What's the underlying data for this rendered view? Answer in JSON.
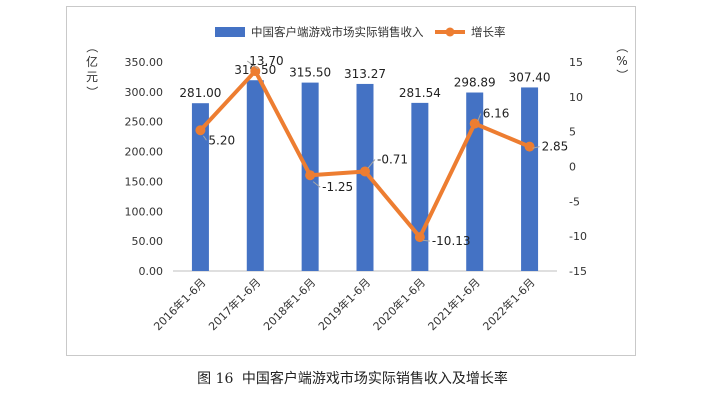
{
  "chart_data": {
    "type": "bar",
    "categories": [
      "2016年1-6月",
      "2017年1-6月",
      "2018年1-6月",
      "2019年1-6月",
      "2020年1-6月",
      "2021年1-6月",
      "2022年1-6月"
    ],
    "series": [
      {
        "name": "中国客户端游戏市场实际销售收入",
        "type": "bar",
        "axis": "left",
        "values": [
          281.0,
          319.5,
          315.5,
          313.27,
          281.54,
          298.89,
          307.4
        ],
        "labels": [
          "281.00",
          "319.50",
          "315.50",
          "313.27",
          "281.54",
          "298.89",
          "307.40"
        ],
        "color": "#4472c4"
      },
      {
        "name": "增长率",
        "type": "line",
        "axis": "right",
        "values": [
          5.2,
          13.7,
          -1.25,
          -0.71,
          -10.13,
          6.16,
          2.85
        ],
        "labels": [
          "5.20",
          "13.70",
          "-1.25",
          "-0.71",
          "-10.13",
          "6.16",
          "2.85"
        ],
        "color": "#ed7d31"
      }
    ],
    "left_axis": {
      "label": "（亿元）",
      "ylim": [
        0,
        350
      ],
      "ticks": [
        "0.00",
        "50.00",
        "100.00",
        "150.00",
        "200.00",
        "250.00",
        "300.00",
        "350.00"
      ]
    },
    "right_axis": {
      "label": "（%）",
      "ylim": [
        -15,
        15
      ],
      "ticks": [
        "-15",
        "-10",
        "-5",
        "0",
        "5",
        "10",
        "15"
      ]
    },
    "grid": false,
    "legend": "top"
  },
  "caption": {
    "number": "图 16",
    "title": "中国客户端游戏市场实际销售收入及增长率"
  }
}
